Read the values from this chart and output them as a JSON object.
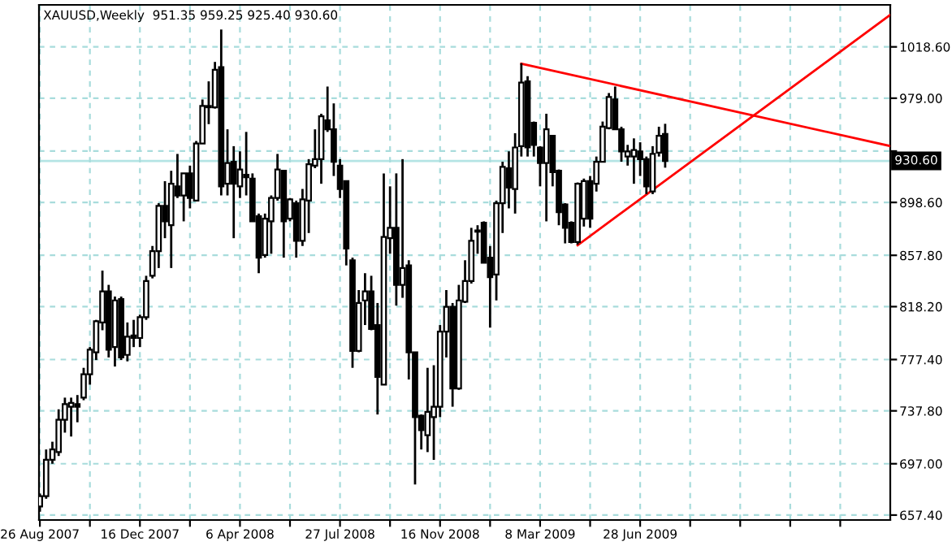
{
  "chart_data": {
    "type": "candlestick",
    "title": "XAUUSD,Weekly  951.35 959.25 925.40 930.60",
    "x": [
      "2007-08-26",
      "2007-09-02",
      "2007-09-09",
      "2007-09-16",
      "2007-09-23",
      "2007-09-30",
      "2007-10-07",
      "2007-10-14",
      "2007-10-21",
      "2007-10-28",
      "2007-11-04",
      "2007-11-11",
      "2007-11-18",
      "2007-11-25",
      "2007-12-02",
      "2007-12-09",
      "2007-12-16",
      "2007-12-23",
      "2007-12-30",
      "2008-01-06",
      "2008-01-13",
      "2008-01-20",
      "2008-01-27",
      "2008-02-03",
      "2008-02-10",
      "2008-02-17",
      "2008-02-24",
      "2008-03-02",
      "2008-03-09",
      "2008-03-16",
      "2008-03-23",
      "2008-03-30",
      "2008-04-06",
      "2008-04-13",
      "2008-04-20",
      "2008-04-27",
      "2008-05-04",
      "2008-05-11",
      "2008-05-18",
      "2008-05-25",
      "2008-06-01",
      "2008-06-08",
      "2008-06-15",
      "2008-06-22",
      "2008-06-29",
      "2008-07-06",
      "2008-07-13",
      "2008-07-20",
      "2008-07-27",
      "2008-08-03",
      "2008-08-10",
      "2008-08-17",
      "2008-08-24",
      "2008-08-31",
      "2008-09-07",
      "2008-09-14",
      "2008-09-21",
      "2008-09-28",
      "2008-10-05",
      "2008-10-12",
      "2008-10-19",
      "2008-10-26",
      "2008-11-02",
      "2008-11-09",
      "2008-11-16",
      "2008-11-23",
      "2008-11-30",
      "2008-12-07",
      "2008-12-14",
      "2008-12-21",
      "2008-12-28",
      "2009-01-04",
      "2009-01-11",
      "2009-01-18",
      "2009-01-25",
      "2009-02-01",
      "2009-02-08",
      "2009-02-15",
      "2009-02-22",
      "2009-03-01",
      "2009-03-08",
      "2009-03-15",
      "2009-03-22",
      "2009-03-29",
      "2009-04-05",
      "2009-04-12",
      "2009-04-19",
      "2009-04-26",
      "2009-05-03",
      "2009-05-10",
      "2009-05-17",
      "2009-05-24",
      "2009-05-31",
      "2009-06-07",
      "2009-06-14",
      "2009-06-21",
      "2009-06-28",
      "2009-07-05",
      "2009-07-12",
      "2009-07-19",
      "2009-07-26"
    ],
    "ohlc": [
      [
        664,
        674,
        660,
        672
      ],
      [
        672,
        708,
        670,
        700
      ],
      [
        700,
        714,
        697,
        708
      ],
      [
        706,
        739,
        703,
        731
      ],
      [
        731,
        748,
        721,
        743
      ],
      [
        741,
        748,
        718,
        744
      ],
      [
        743,
        750,
        729,
        741
      ],
      [
        748,
        771,
        746,
        766
      ],
      [
        766,
        787,
        758,
        785
      ],
      [
        783,
        808,
        777,
        807
      ],
      [
        806,
        846,
        800,
        830
      ],
      [
        830,
        835,
        779,
        785
      ],
      [
        787,
        826,
        772,
        823
      ],
      [
        824,
        826,
        777,
        779
      ],
      [
        781,
        806,
        776,
        795
      ],
      [
        796,
        808,
        787,
        794
      ],
      [
        794,
        812,
        787,
        810
      ],
      [
        810,
        842,
        808,
        838
      ],
      [
        842,
        865,
        840,
        861
      ],
      [
        861,
        898,
        848,
        896
      ],
      [
        896,
        915,
        871,
        884
      ],
      [
        881,
        923,
        848,
        913
      ],
      [
        911,
        936,
        902,
        904
      ],
      [
        904,
        921,
        884,
        921
      ],
      [
        921,
        927,
        894,
        902
      ],
      [
        900,
        946,
        900,
        944
      ],
      [
        944,
        978,
        944,
        973
      ],
      [
        973,
        992,
        959,
        972
      ],
      [
        972,
        1007,
        971,
        1001
      ],
      [
        1003,
        1032,
        904,
        911
      ],
      [
        913,
        955,
        904,
        929
      ],
      [
        930,
        942,
        871,
        913
      ],
      [
        911,
        938,
        902,
        924
      ],
      [
        920,
        953,
        904,
        918
      ],
      [
        917,
        921,
        884,
        884
      ],
      [
        888,
        890,
        844,
        856
      ],
      [
        858,
        890,
        856,
        886
      ],
      [
        884,
        904,
        859,
        902
      ],
      [
        902,
        936,
        900,
        924
      ],
      [
        923,
        923,
        856,
        884
      ],
      [
        886,
        902,
        884,
        901
      ],
      [
        898,
        900,
        856,
        869
      ],
      [
        869,
        909,
        865,
        901
      ],
      [
        900,
        932,
        875,
        928
      ],
      [
        927,
        955,
        925,
        932
      ],
      [
        932,
        967,
        913,
        965
      ],
      [
        962,
        988,
        953,
        955
      ],
      [
        955,
        975,
        919,
        930
      ],
      [
        927,
        932,
        902,
        909
      ],
      [
        915,
        915,
        850,
        863
      ],
      [
        854,
        856,
        771,
        784
      ],
      [
        784,
        831,
        783,
        821
      ],
      [
        823,
        844,
        804,
        830
      ],
      [
        830,
        842,
        800,
        801
      ],
      [
        804,
        821,
        735,
        764
      ],
      [
        758,
        921,
        758,
        872
      ],
      [
        871,
        911,
        859,
        879
      ],
      [
        879,
        921,
        819,
        835
      ],
      [
        835,
        932,
        825,
        848
      ],
      [
        850,
        854,
        762,
        783
      ],
      [
        783,
        783,
        681,
        733
      ],
      [
        734,
        735,
        708,
        723
      ],
      [
        719,
        771,
        706,
        737
      ],
      [
        733,
        773,
        700,
        741
      ],
      [
        741,
        804,
        733,
        799
      ],
      [
        799,
        831,
        779,
        818
      ],
      [
        818,
        821,
        741,
        755
      ],
      [
        755,
        835,
        754,
        823
      ],
      [
        822,
        854,
        821,
        838
      ],
      [
        838,
        879,
        836,
        869
      ],
      [
        876,
        881,
        859,
        877
      ],
      [
        883,
        884,
        852,
        852
      ],
      [
        856,
        865,
        802,
        841
      ],
      [
        843,
        900,
        823,
        898
      ],
      [
        898,
        930,
        875,
        926
      ],
      [
        925,
        938,
        894,
        910
      ],
      [
        909,
        952,
        890,
        941
      ],
      [
        942,
        1006,
        934,
        991
      ],
      [
        992,
        996,
        934,
        941
      ],
      [
        960,
        961,
        934,
        943
      ],
      [
        941,
        942,
        911,
        929
      ],
      [
        929,
        967,
        884,
        955
      ],
      [
        950,
        950,
        911,
        922
      ],
      [
        923,
        924,
        881,
        891
      ],
      [
        897,
        898,
        867,
        879
      ],
      [
        883,
        884,
        867,
        868
      ],
      [
        868,
        914,
        866,
        913
      ],
      [
        886,
        917,
        880,
        915
      ],
      [
        915,
        919,
        879,
        886
      ],
      [
        913,
        934,
        907,
        930
      ],
      [
        930,
        961,
        930,
        957
      ],
      [
        956,
        983,
        955,
        980
      ],
      [
        978,
        988,
        955,
        955
      ],
      [
        955,
        957,
        930,
        938
      ],
      [
        934,
        943,
        927,
        938
      ],
      [
        934,
        948,
        913,
        939
      ],
      [
        938,
        945,
        919,
        932
      ],
      [
        932,
        934,
        905,
        911
      ],
      [
        907,
        942,
        905,
        936
      ],
      [
        937,
        957,
        934,
        950
      ],
      [
        951.35,
        959.25,
        925.4,
        930.6
      ]
    ],
    "color": "#000000",
    "series": [
      {
        "type": "line",
        "color": "#ff0000",
        "x": [
          "2009-02-15",
          "2010-04-04"
        ],
        "values": [
          1005.6,
          942.1
        ]
      },
      {
        "type": "line",
        "color": "#ff0000",
        "x": [
          "2009-04-19",
          "2010-04-04"
        ],
        "values": [
          865.6,
          1043.3
        ]
      }
    ],
    "xlim": [
      "2007-08-25",
      "2010-04-04"
    ],
    "xticks": [
      {
        "value": "2007-08-26",
        "label": "26 Aug 2007"
      },
      {
        "value": "2007-10-21",
        "label": null
      },
      {
        "value": "2007-12-16",
        "label": "16 Dec 2007"
      },
      {
        "value": "2008-02-10",
        "label": null
      },
      {
        "value": "2008-04-06",
        "label": "6 Apr 2008"
      },
      {
        "value": "2008-06-01",
        "label": null
      },
      {
        "value": "2008-07-27",
        "label": "27 Jul 2008"
      },
      {
        "value": "2008-09-21",
        "label": null
      },
      {
        "value": "2008-11-16",
        "label": "16 Nov 2008"
      },
      {
        "value": "2009-01-11",
        "label": null
      },
      {
        "value": "2009-03-08",
        "label": "8 Mar 2009"
      },
      {
        "value": "2009-05-03",
        "label": null
      },
      {
        "value": "2009-06-28",
        "label": "28 Jun 2009"
      },
      {
        "value": "2009-08-23",
        "label": null
      },
      {
        "value": "2009-10-18",
        "label": null
      },
      {
        "value": "2009-12-13",
        "label": null
      },
      {
        "value": "2010-02-07",
        "label": null
      }
    ],
    "ylim": [
      653.6,
      1051
    ],
    "yticks": [
      {
        "value": 657.4,
        "label": "657.40"
      },
      {
        "value": 697.0,
        "label": "697.00"
      },
      {
        "value": 737.8,
        "label": "737.80"
      },
      {
        "value": 777.4,
        "label": "777.40"
      },
      {
        "value": 818.2,
        "label": "818.20"
      },
      {
        "value": 857.8,
        "label": "857.80"
      },
      {
        "value": 898.6,
        "label": "898.60"
      },
      {
        "value": 938.2,
        "label": null
      },
      {
        "value": 979.0,
        "label": "979.00"
      },
      {
        "value": 1018.6,
        "label": "1018.60"
      }
    ],
    "ref_lines": [
      {
        "axis": "y",
        "value": 930.6,
        "label": "930.60",
        "color": "#b4e4e4"
      }
    ],
    "grid": true
  }
}
